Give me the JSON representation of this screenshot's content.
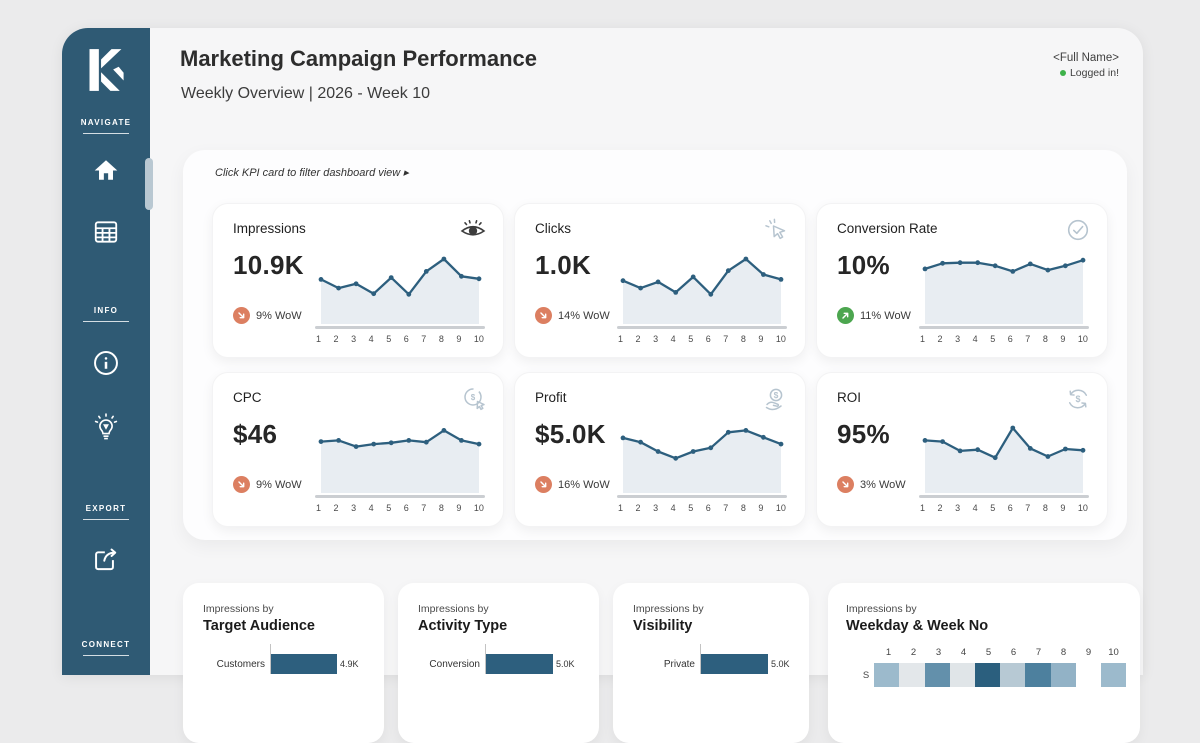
{
  "header": {
    "title": "Marketing Campaign Performance",
    "subtitle": "Weekly Overview | 2026 - Week 10",
    "user_name": "<Full Name>",
    "login_status": "Logged in!"
  },
  "sidebar": {
    "logo_letter": "K",
    "sections": [
      {
        "label": "NAVIGATE",
        "icons": [
          "home-icon",
          "table-icon"
        ]
      },
      {
        "label": "INFO",
        "icons": [
          "info-icon",
          "idea-bulb-icon"
        ]
      },
      {
        "label": "EXPORT",
        "icons": [
          "share-export-icon"
        ]
      },
      {
        "label": "CONNECT",
        "icons": []
      }
    ]
  },
  "kpi_section": {
    "hint": "Click KPI card to filter dashboard view ▸",
    "cards": [
      {
        "title": "Impressions",
        "value": "10.9K",
        "wow": "9% WoW",
        "trend": "down",
        "icon": "eye-icon"
      },
      {
        "title": "Clicks",
        "value": "1.0K",
        "wow": "14% WoW",
        "trend": "down",
        "icon": "cursor-click-icon"
      },
      {
        "title": "Conversion Rate",
        "value": "10%",
        "wow": "11% WoW",
        "trend": "up",
        "icon": "check-circle-icon"
      },
      {
        "title": "CPC",
        "value": "$46",
        "wow": "9% WoW",
        "trend": "down",
        "icon": "cost-per-click-icon"
      },
      {
        "title": "Profit",
        "value": "$5.0K",
        "wow": "16% WoW",
        "trend": "down",
        "icon": "hand-coin-icon"
      },
      {
        "title": "ROI",
        "value": "95%",
        "wow": "3% WoW",
        "trend": "down",
        "icon": "roi-cycle-icon"
      }
    ]
  },
  "bottom_section": {
    "cards": [
      {
        "subtitle": "Impressions by",
        "title": "Target Audience",
        "bar_label": "Customers",
        "bar_value": "4.9K"
      },
      {
        "subtitle": "Impressions by",
        "title": "Activity Type",
        "bar_label": "Conversion",
        "bar_value": "5.0K"
      },
      {
        "subtitle": "Impressions by",
        "title": "Visibility",
        "bar_label": "Private",
        "bar_value": "5.0K"
      },
      {
        "subtitle": "Impressions by",
        "title": "Weekday & Week No",
        "row_label": "S"
      }
    ]
  },
  "colors": {
    "sidebar": "#2f5a74",
    "accent_dark_blue": "#2d5f7e",
    "spark_fill": "#e8edf2",
    "trend_down_orange": "#dc7f61",
    "trend_up_green": "#4ca64f",
    "muted_icon": "#b6c4cf",
    "status_green": "#3eb24a"
  },
  "chart_data": [
    {
      "type": "line",
      "name": "impressions-sparkline",
      "x": [
        1,
        2,
        3,
        4,
        5,
        6,
        7,
        8,
        9,
        10
      ],
      "values": [
        59,
        45,
        52,
        36,
        62,
        35,
        72,
        92,
        64,
        60
      ],
      "line_color": "#2d5f7e",
      "fill_color": "#e8edf2"
    },
    {
      "type": "line",
      "name": "clicks-sparkline",
      "x": [
        1,
        2,
        3,
        4,
        5,
        6,
        7,
        8,
        9,
        10
      ],
      "values": [
        57,
        45,
        55,
        38,
        63,
        35,
        73,
        92,
        67,
        59
      ],
      "line_color": "#2d5f7e",
      "fill_color": "#e8edf2"
    },
    {
      "type": "line",
      "name": "conversion-rate-sparkline",
      "x": [
        1,
        2,
        3,
        4,
        5,
        6,
        7,
        8,
        9,
        10
      ],
      "values": [
        76,
        85,
        86,
        86,
        81,
        72,
        84,
        74,
        81,
        90
      ],
      "line_color": "#2d5f7e",
      "fill_color": "#e8edf2"
    },
    {
      "type": "line",
      "name": "cpc-sparkline",
      "x": [
        1,
        2,
        3,
        4,
        5,
        6,
        7,
        8,
        9,
        10
      ],
      "values": [
        70,
        72,
        62,
        66,
        68,
        72,
        69,
        88,
        72,
        66
      ],
      "line_color": "#2d5f7e",
      "fill_color": "#e8edf2"
    },
    {
      "type": "line",
      "name": "profit-sparkline",
      "x": [
        1,
        2,
        3,
        4,
        5,
        6,
        7,
        8,
        9,
        10
      ],
      "values": [
        76,
        69,
        54,
        43,
        54,
        60,
        85,
        88,
        77,
        66
      ],
      "line_color": "#2d5f7e",
      "fill_color": "#e8edf2"
    },
    {
      "type": "line",
      "name": "roi-sparkline",
      "x": [
        1,
        2,
        3,
        4,
        5,
        6,
        7,
        8,
        9,
        10
      ],
      "values": [
        72,
        70,
        55,
        57,
        44,
        92,
        59,
        46,
        58,
        56
      ],
      "line_color": "#2d5f7e",
      "fill_color": "#e8edf2"
    },
    {
      "type": "bar",
      "name": "impressions-by-target-audience",
      "categories": [
        "Customers"
      ],
      "values": [
        4900
      ],
      "value_labels": [
        "4.9K"
      ],
      "bar_color": "#2d5f7e",
      "xmax": 5000
    },
    {
      "type": "bar",
      "name": "impressions-by-activity-type",
      "categories": [
        "Conversion"
      ],
      "values": [
        5000
      ],
      "value_labels": [
        "5.0K"
      ],
      "bar_color": "#2d5f7e",
      "xmax": 5000
    },
    {
      "type": "bar",
      "name": "impressions-by-visibility",
      "categories": [
        "Private"
      ],
      "values": [
        5000
      ],
      "value_labels": [
        "5.0K"
      ],
      "bar_color": "#2d5f7e",
      "xmax": 5000
    },
    {
      "type": "heatmap",
      "name": "impressions-by-weekday-week",
      "columns": [
        "1",
        "2",
        "3",
        "4",
        "5",
        "6",
        "7",
        "8",
        "9",
        "10"
      ],
      "rows": [
        "S"
      ],
      "cell_colors": [
        [
          "#9cbacc",
          "#e3e7ea",
          "#6390ab",
          "#e0e5e8",
          "#2b5f7e",
          "#b7c9d4",
          "#4d809e",
          "#92b2c6",
          null,
          "#9cbacc"
        ]
      ]
    }
  ]
}
